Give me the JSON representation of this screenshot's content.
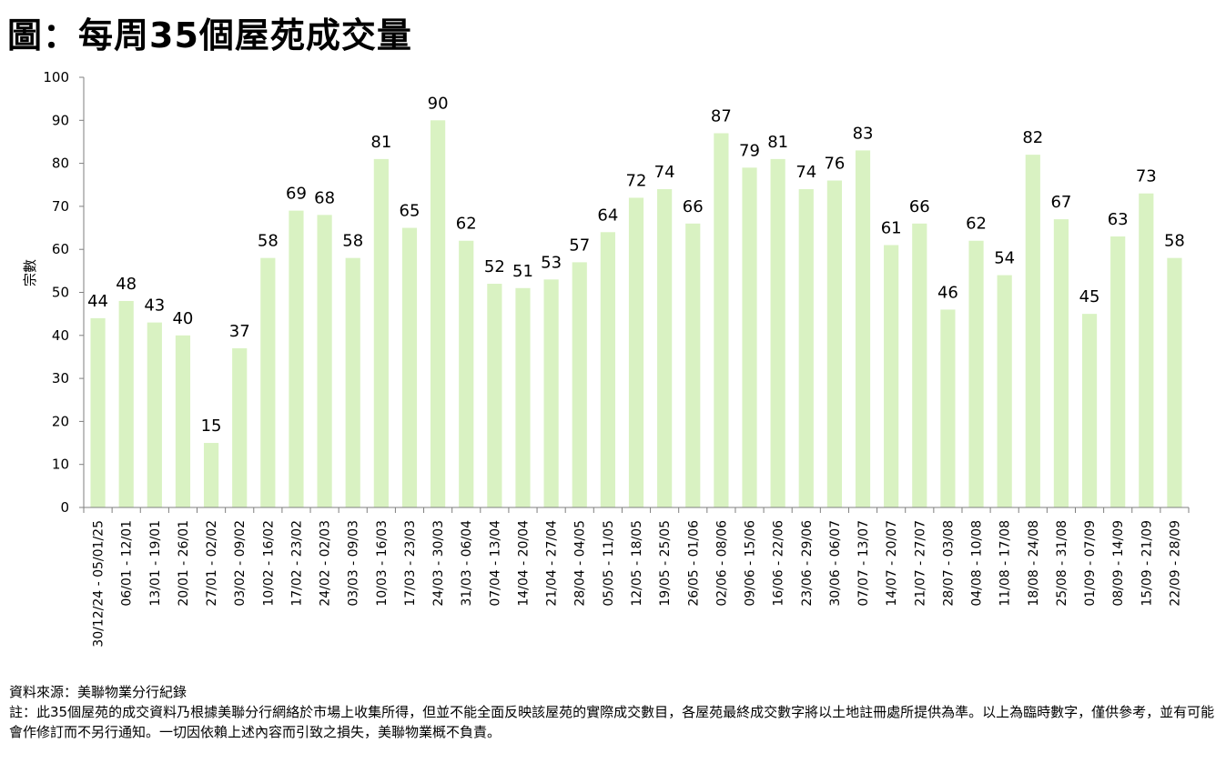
{
  "chart_data": {
    "type": "bar",
    "title": "圖：每周35個屋苑成交量",
    "ylabel": "宗數",
    "xlabel": "",
    "ylim": [
      0,
      100
    ],
    "yticks": [
      0,
      10,
      20,
      30,
      40,
      50,
      60,
      70,
      80,
      90,
      100
    ],
    "grid": false,
    "bar_color": "#d9f2c2",
    "categories": [
      "30/12/24 - 05/01/25",
      "06/01 - 12/01",
      "13/01 - 19/01",
      "20/01 - 26/01",
      "27/01 - 02/02",
      "03/02 - 09/02",
      "10/02 - 16/02",
      "17/02 - 23/02",
      "24/02 - 02/03",
      "03/03 - 09/03",
      "10/03 - 16/03",
      "17/03 - 23/03",
      "24/03 - 30/03",
      "31/03 - 06/04",
      "07/04 - 13/04",
      "14/04 - 20/04",
      "21/04 - 27/04",
      "28/04 - 04/05",
      "05/05 - 11/05",
      "12/05 - 18/05",
      "19/05 - 25/05",
      "26/05 - 01/06",
      "02/06 - 08/06",
      "09/06 - 15/06",
      "16/06 - 22/06",
      "23/06 - 29/06",
      "30/06 - 06/07",
      "07/07 - 13/07",
      "14/07 - 20/07",
      "21/07 - 27/07",
      "28/07 - 03/08",
      "04/08 - 10/08",
      "11/08 - 17/08",
      "18/08 - 24/08",
      "25/08 - 31/08",
      "01/09 - 07/09",
      "08/09 - 14/09",
      "15/09 - 21/09",
      "22/09 - 28/09"
    ],
    "values": [
      44,
      48,
      43,
      40,
      15,
      37,
      58,
      69,
      68,
      58,
      81,
      65,
      90,
      62,
      52,
      51,
      53,
      57,
      64,
      72,
      74,
      66,
      87,
      79,
      81,
      74,
      76,
      83,
      61,
      66,
      46,
      62,
      54,
      82,
      67,
      45,
      63,
      73,
      58
    ]
  },
  "footer": {
    "source": "資料來源：美聯物業分行紀錄",
    "note": "註：此35個屋苑的成交資料乃根據美聯分行網絡於市場上收集所得，但並不能全面反映該屋苑的實際成交數目，各屋苑最終成交數字將以土地註冊處所提供為準。以上為臨時數字，僅供參考，並有可能會作修訂而不另行通知。一切因依賴上述內容而引致之損失，美聯物業概不負責。"
  }
}
